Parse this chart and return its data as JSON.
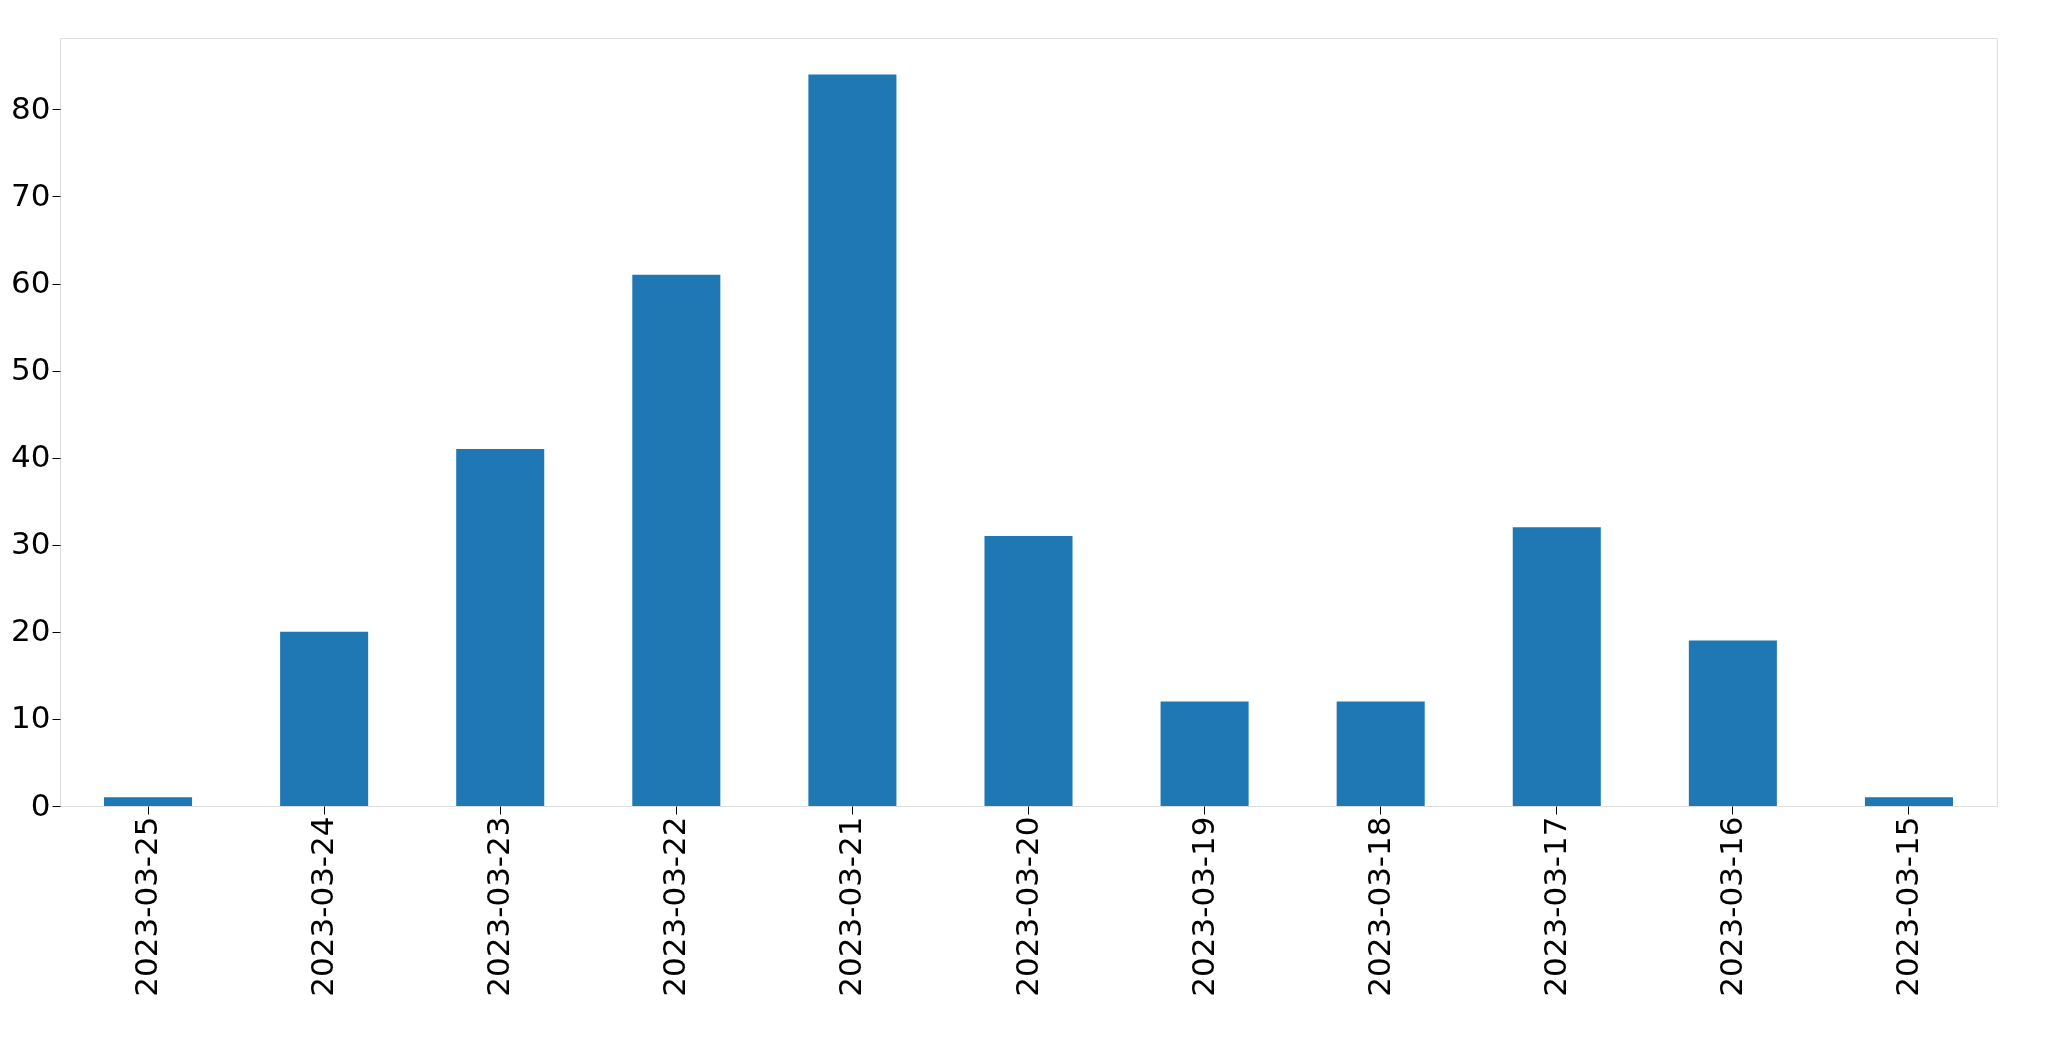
{
  "chart_data": {
    "type": "bar",
    "categories": [
      "2023-03-25",
      "2023-03-24",
      "2023-03-23",
      "2023-03-22",
      "2023-03-21",
      "2023-03-20",
      "2023-03-19",
      "2023-03-18",
      "2023-03-17",
      "2023-03-16",
      "2023-03-15"
    ],
    "values": [
      1,
      20,
      41,
      61,
      84,
      31,
      12,
      12,
      32,
      19,
      1
    ],
    "color": "#1f77b4",
    "ylim": [
      0,
      88.2
    ],
    "yticks": [
      0,
      10,
      20,
      30,
      40,
      50,
      60,
      70,
      80
    ],
    "grid": false
  }
}
